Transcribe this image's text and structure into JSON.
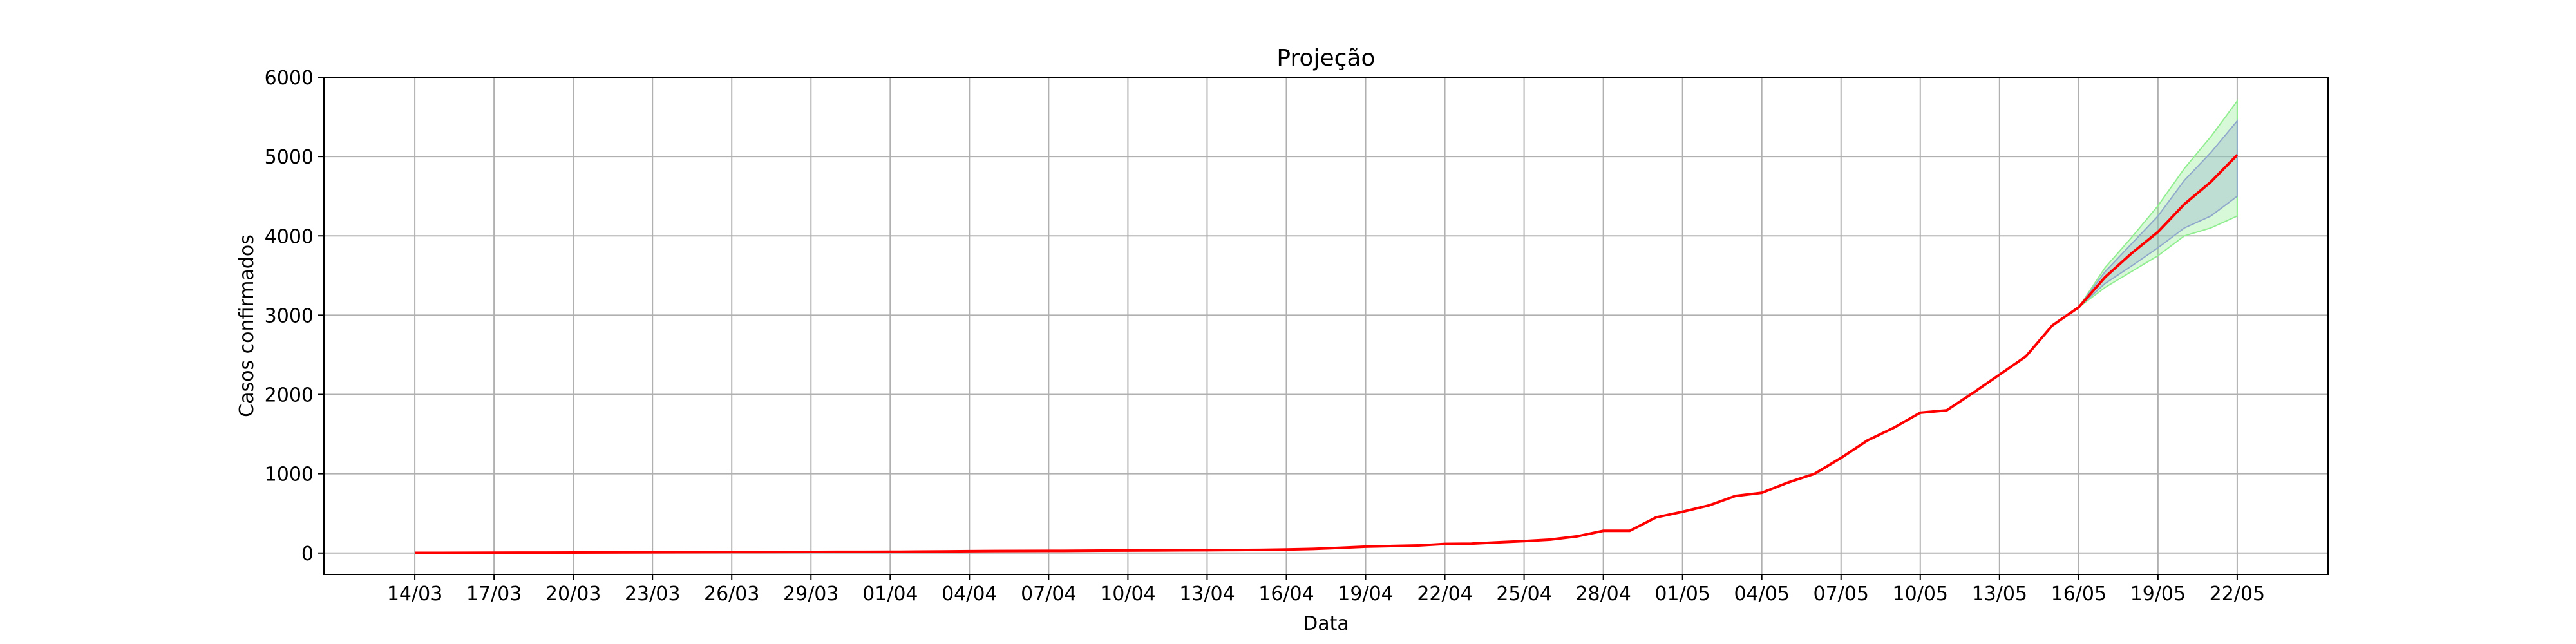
{
  "chart_data": {
    "type": "line",
    "title": "Projeção",
    "xlabel": "Data",
    "ylabel": "Casos confirmados",
    "categories": [
      "14/03",
      null,
      null,
      "17/03",
      null,
      null,
      "20/03",
      null,
      null,
      "23/03",
      null,
      null,
      "26/03",
      null,
      null,
      "29/03",
      null,
      null,
      "01/04",
      null,
      null,
      "04/04",
      null,
      null,
      "07/04",
      null,
      null,
      "10/04",
      null,
      null,
      "13/04",
      null,
      null,
      "16/04",
      null,
      null,
      "19/04",
      null,
      null,
      "22/04",
      null,
      null,
      "25/04",
      null,
      null,
      "28/04",
      null,
      null,
      "01/05",
      null,
      null,
      "04/05",
      null,
      null,
      "07/05",
      null,
      null,
      "10/05",
      null,
      null,
      "13/05",
      null,
      null,
      "16/05",
      null,
      null,
      "19/05",
      null,
      null,
      "22/05"
    ],
    "series": [
      {
        "color": "#ff0000",
        "values": [
          2,
          2,
          3,
          4,
          5,
          5,
          6,
          7,
          8,
          9,
          10,
          11,
          12,
          12,
          13,
          14,
          15,
          15,
          16,
          18,
          20,
          23,
          25,
          26,
          27,
          28,
          30,
          32,
          33,
          35,
          36,
          38,
          40,
          45,
          52,
          65,
          80,
          88,
          95,
          115,
          118,
          135,
          150,
          170,
          210,
          280,
          280,
          450,
          520,
          600,
          720,
          760,
          890,
          1000,
          1200,
          1420,
          1580,
          1770,
          1800,
          2020,
          2250,
          2480,
          2870,
          3100,
          3480,
          3780,
          4050,
          4400,
          4680,
          5020
        ]
      }
    ],
    "bands": [
      {
        "color": "#90ee90",
        "lower": [
          null,
          null,
          null,
          null,
          null,
          null,
          null,
          null,
          null,
          null,
          null,
          null,
          null,
          null,
          null,
          null,
          null,
          null,
          null,
          null,
          null,
          null,
          null,
          null,
          null,
          null,
          null,
          null,
          null,
          null,
          null,
          null,
          null,
          null,
          null,
          null,
          null,
          null,
          null,
          null,
          null,
          null,
          null,
          null,
          null,
          null,
          null,
          null,
          null,
          null,
          null,
          null,
          null,
          null,
          null,
          null,
          null,
          null,
          null,
          null,
          null,
          null,
          null,
          3100,
          3350,
          3550,
          3750,
          4000,
          4100,
          4250
        ],
        "upper": [
          null,
          null,
          null,
          null,
          null,
          null,
          null,
          null,
          null,
          null,
          null,
          null,
          null,
          null,
          null,
          null,
          null,
          null,
          null,
          null,
          null,
          null,
          null,
          null,
          null,
          null,
          null,
          null,
          null,
          null,
          null,
          null,
          null,
          null,
          null,
          null,
          null,
          null,
          null,
          null,
          null,
          null,
          null,
          null,
          null,
          null,
          null,
          null,
          null,
          null,
          null,
          null,
          null,
          null,
          null,
          null,
          null,
          null,
          null,
          null,
          null,
          null,
          null,
          3100,
          3600,
          3980,
          4380,
          4850,
          5250,
          5700
        ]
      },
      {
        "color": "#8fa8cc",
        "lower": [
          null,
          null,
          null,
          null,
          null,
          null,
          null,
          null,
          null,
          null,
          null,
          null,
          null,
          null,
          null,
          null,
          null,
          null,
          null,
          null,
          null,
          null,
          null,
          null,
          null,
          null,
          null,
          null,
          null,
          null,
          null,
          null,
          null,
          null,
          null,
          null,
          null,
          null,
          null,
          null,
          null,
          null,
          null,
          null,
          null,
          null,
          null,
          null,
          null,
          null,
          null,
          null,
          null,
          null,
          null,
          null,
          null,
          null,
          null,
          null,
          null,
          null,
          null,
          3100,
          3400,
          3620,
          3850,
          4100,
          4250,
          4500
        ],
        "upper": [
          null,
          null,
          null,
          null,
          null,
          null,
          null,
          null,
          null,
          null,
          null,
          null,
          null,
          null,
          null,
          null,
          null,
          null,
          null,
          null,
          null,
          null,
          null,
          null,
          null,
          null,
          null,
          null,
          null,
          null,
          null,
          null,
          null,
          null,
          null,
          null,
          null,
          null,
          null,
          null,
          null,
          null,
          null,
          null,
          null,
          null,
          null,
          null,
          null,
          null,
          null,
          null,
          null,
          null,
          null,
          null,
          null,
          null,
          null,
          null,
          null,
          null,
          null,
          3100,
          3550,
          3900,
          4250,
          4700,
          5050,
          5450
        ]
      }
    ],
    "ylim": [
      -270,
      6000
    ],
    "yticks": [
      0,
      1000,
      2000,
      3000,
      4000,
      5000,
      6000
    ],
    "grid": true
  }
}
